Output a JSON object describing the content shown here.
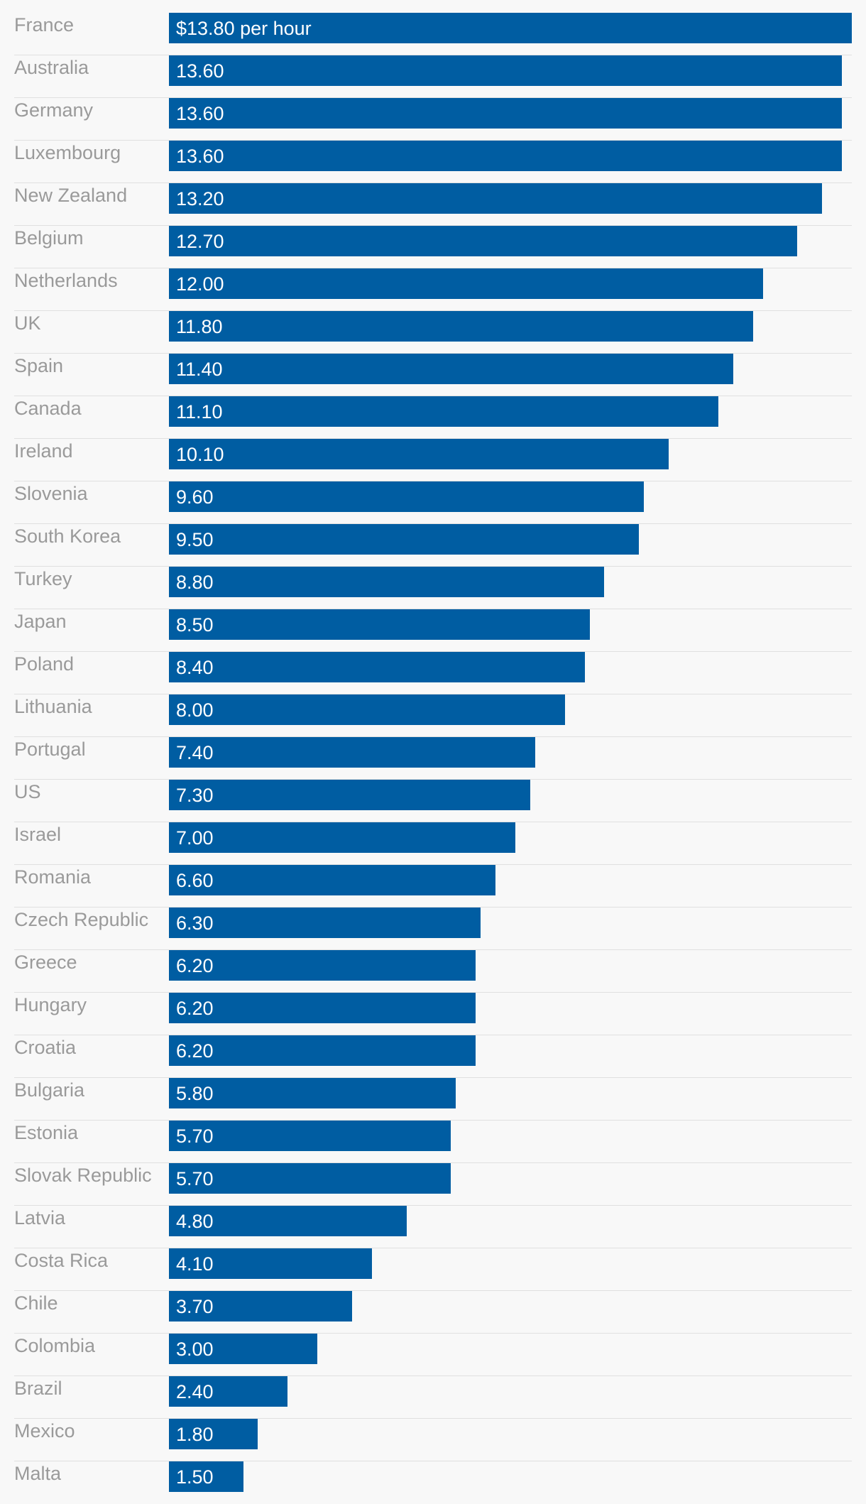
{
  "chart_data": {
    "type": "bar",
    "orientation": "horizontal",
    "title": "",
    "xlabel": "",
    "ylabel": "",
    "unit_label": "per hour",
    "currency_prefix": "$",
    "xlim": [
      0,
      13.8
    ],
    "bar_color": "#005da2",
    "label_color": "#9a9a9a",
    "divider_color": "#e0e0e0",
    "background_color": "#f8f8f8",
    "categories": [
      "France",
      "Australia",
      "Germany",
      "Luxembourg",
      "New Zealand",
      "Belgium",
      "Netherlands",
      "UK",
      "Spain",
      "Canada",
      "Ireland",
      "Slovenia",
      "South Korea",
      "Turkey",
      "Japan",
      "Poland",
      "Lithuania",
      "Portugal",
      "US",
      "Israel",
      "Romania",
      "Czech Republic",
      "Greece",
      "Hungary",
      "Croatia",
      "Bulgaria",
      "Estonia",
      "Slovak Republic",
      "Latvia",
      "Costa Rica",
      "Chile",
      "Colombia",
      "Brazil",
      "Mexico",
      "Malta"
    ],
    "values": [
      13.8,
      13.6,
      13.6,
      13.6,
      13.2,
      12.7,
      12.0,
      11.8,
      11.4,
      11.1,
      10.1,
      9.6,
      9.5,
      8.8,
      8.5,
      8.4,
      8.0,
      7.4,
      7.3,
      7.0,
      6.6,
      6.3,
      6.2,
      6.2,
      6.2,
      5.8,
      5.7,
      5.7,
      4.8,
      4.1,
      3.7,
      3.0,
      2.4,
      1.8,
      1.5
    ],
    "value_labels": [
      "$13.80 per hour",
      "13.60",
      "13.60",
      "13.60",
      "13.20",
      "12.70",
      "12.00",
      "11.80",
      "11.40",
      "11.10",
      "10.10",
      "9.60",
      "9.50",
      "8.80",
      "8.50",
      "8.40",
      "8.00",
      "7.40",
      "7.30",
      "7.00",
      "6.60",
      "6.30",
      "6.20",
      "6.20",
      "6.20",
      "5.80",
      "5.70",
      "5.70",
      "4.80",
      "4.10",
      "3.70",
      "3.00",
      "2.40",
      "1.80",
      "1.50"
    ]
  }
}
